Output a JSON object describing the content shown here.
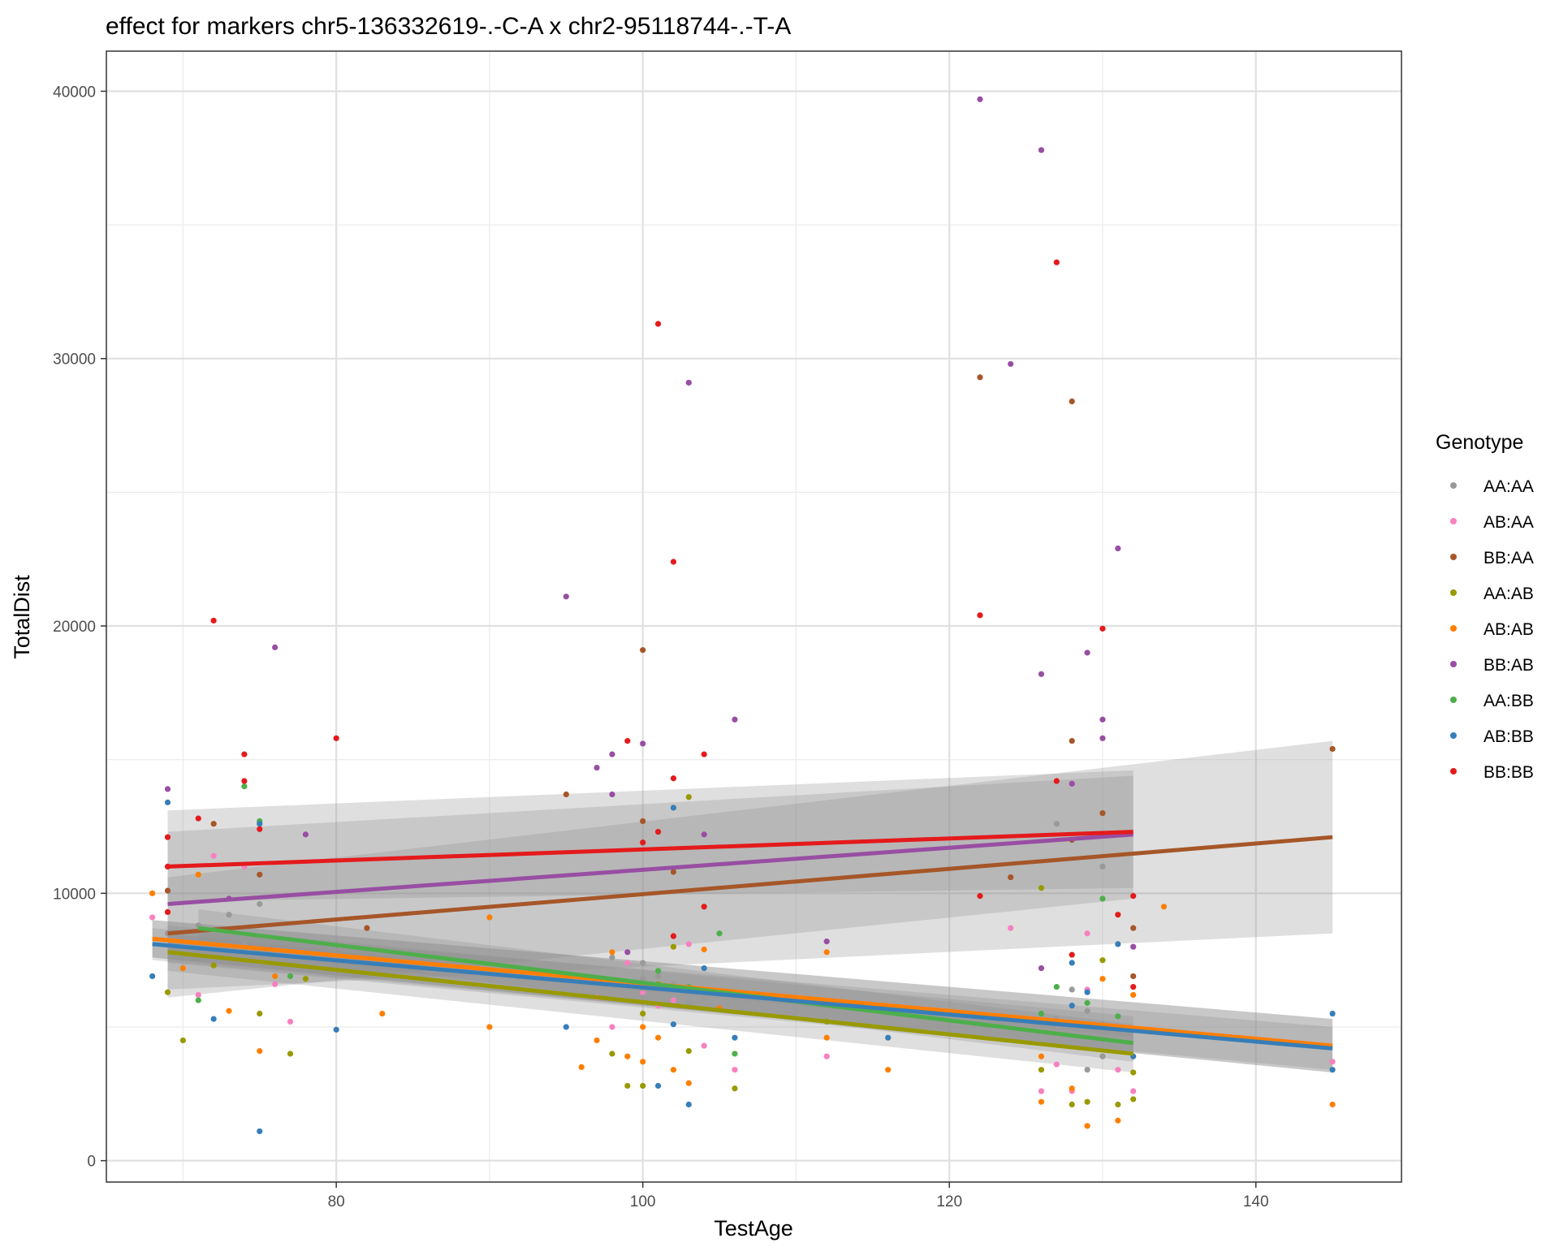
{
  "chart_data": {
    "type": "scatter",
    "title": "effect for markers chr5-136332619-.-C-A x chr2-95118744-.-T-A",
    "xlabel": "TestAge",
    "ylabel": "TotalDist",
    "xlim": [
      65,
      149.5
    ],
    "ylim": [
      -800,
      41500
    ],
    "x_ticks": [
      80,
      100,
      120,
      140
    ],
    "y_ticks": [
      0,
      10000,
      20000,
      30000,
      40000
    ],
    "x_minor": [
      70,
      90,
      110,
      130
    ],
    "y_minor": [
      5000,
      15000,
      25000,
      35000
    ],
    "grid": true,
    "legend": {
      "title": "Genotype",
      "placement": "right",
      "items": [
        "AA:AA",
        "AB:AA",
        "BB:AA",
        "AA:AB",
        "AB:AB",
        "BB:AB",
        "AA:BB",
        "AB:BB",
        "BB:BB"
      ]
    },
    "colors": {
      "AA:AA": "#999999",
      "AB:AA": "#f781bf",
      "BB:AA": "#a65628",
      "AA:AB": "#999900",
      "AB:AB": "#ff7f00",
      "BB:AB": "#984ea3",
      "AA:BB": "#4daf4a",
      "AB:BB": "#377eb8",
      "BB:BB": "#e41a1c"
    },
    "series": [
      {
        "name": "AA:AA",
        "points": [
          [
            69,
            8500
          ],
          [
            71,
            8800
          ],
          [
            73,
            9200
          ],
          [
            74,
            8100
          ],
          [
            75,
            9600
          ],
          [
            76,
            7700
          ],
          [
            98,
            7600
          ],
          [
            100,
            7400
          ],
          [
            100,
            6800
          ],
          [
            101,
            6900
          ],
          [
            102,
            6600
          ],
          [
            103,
            5900
          ],
          [
            104,
            6100
          ],
          [
            129,
            5600
          ],
          [
            130,
            5100
          ],
          [
            131,
            4900
          ],
          [
            128,
            6400
          ],
          [
            127,
            5300
          ],
          [
            129,
            3400
          ],
          [
            130,
            3900
          ],
          [
            127,
            12600
          ],
          [
            130,
            11000
          ]
        ],
        "fit": {
          "x": [
            69,
            132
          ],
          "y": [
            8100,
            4700
          ]
        },
        "ci": {
          "x": [
            69,
            132
          ],
          "upper": [
            8800,
            5400
          ],
          "lower": [
            7400,
            4000
          ]
        }
      },
      {
        "name": "AB:AA",
        "points": [
          [
            68,
            9100
          ],
          [
            71,
            6200
          ],
          [
            72,
            11400
          ],
          [
            74,
            11000
          ],
          [
            76,
            6600
          ],
          [
            77,
            5200
          ],
          [
            97,
            6100
          ],
          [
            98,
            5000
          ],
          [
            99,
            7400
          ],
          [
            100,
            6300
          ],
          [
            101,
            5800
          ],
          [
            102,
            6000
          ],
          [
            103,
            8100
          ],
          [
            104,
            4300
          ],
          [
            106,
            3400
          ],
          [
            112,
            3900
          ],
          [
            124,
            8700
          ],
          [
            126,
            2600
          ],
          [
            127,
            3600
          ],
          [
            128,
            2600
          ],
          [
            129,
            8500
          ],
          [
            129,
            6400
          ],
          [
            131,
            3400
          ],
          [
            132,
            2600
          ],
          [
            145,
            3700
          ]
        ],
        "fit": {
          "x": [
            68,
            145
          ],
          "y": [
            8300,
            4300
          ]
        },
        "ci": {
          "x": [
            68,
            145
          ],
          "upper": [
            9000,
            5300
          ],
          "lower": [
            7600,
            3300
          ]
        }
      },
      {
        "name": "BB:AA",
        "points": [
          [
            69,
            10100
          ],
          [
            72,
            12600
          ],
          [
            75,
            10700
          ],
          [
            82,
            8700
          ],
          [
            95,
            13700
          ],
          [
            100,
            19100
          ],
          [
            100,
            12700
          ],
          [
            102,
            10800
          ],
          [
            122,
            29300
          ],
          [
            124,
            10600
          ],
          [
            128,
            28400
          ],
          [
            128,
            15700
          ],
          [
            128,
            12000
          ],
          [
            130,
            13000
          ],
          [
            132,
            8700
          ],
          [
            132,
            6900
          ],
          [
            145,
            15400
          ]
        ],
        "fit": {
          "x": [
            69,
            145
          ],
          "y": [
            8500,
            12100
          ]
        },
        "ci": {
          "x": [
            69,
            145
          ],
          "upper": [
            10600,
            15700
          ],
          "lower": [
            6400,
            8500
          ]
        }
      },
      {
        "name": "AA:AB",
        "points": [
          [
            69,
            6300
          ],
          [
            70,
            4500
          ],
          [
            72,
            7300
          ],
          [
            75,
            5500
          ],
          [
            77,
            4000
          ],
          [
            78,
            6800
          ],
          [
            98,
            4000
          ],
          [
            99,
            2800
          ],
          [
            100,
            2800
          ],
          [
            100,
            5500
          ],
          [
            101,
            6600
          ],
          [
            102,
            8000
          ],
          [
            103,
            13600
          ],
          [
            103,
            4100
          ],
          [
            104,
            6300
          ],
          [
            106,
            2700
          ],
          [
            112,
            5200
          ],
          [
            126,
            10200
          ],
          [
            126,
            3400
          ],
          [
            128,
            2100
          ],
          [
            129,
            2200
          ],
          [
            130,
            7500
          ],
          [
            131,
            2100
          ],
          [
            132,
            3300
          ],
          [
            132,
            2300
          ]
        ],
        "fit": {
          "x": [
            69,
            132
          ],
          "y": [
            7800,
            4000
          ]
        },
        "ci": {
          "x": [
            69,
            132
          ],
          "upper": [
            8500,
            4700
          ],
          "lower": [
            7100,
            3300
          ]
        }
      },
      {
        "name": "AB:AB",
        "points": [
          [
            68,
            10000
          ],
          [
            70,
            7200
          ],
          [
            71,
            10700
          ],
          [
            73,
            5600
          ],
          [
            75,
            4100
          ],
          [
            76,
            6900
          ],
          [
            83,
            5500
          ],
          [
            90,
            9100
          ],
          [
            90,
            5000
          ],
          [
            96,
            3500
          ],
          [
            97,
            4500
          ],
          [
            98,
            7800
          ],
          [
            99,
            3900
          ],
          [
            100,
            3700
          ],
          [
            100,
            5000
          ],
          [
            101,
            4600
          ],
          [
            102,
            3400
          ],
          [
            103,
            2900
          ],
          [
            104,
            7900
          ],
          [
            105,
            5700
          ],
          [
            112,
            7800
          ],
          [
            112,
            4600
          ],
          [
            116,
            3400
          ],
          [
            126,
            3900
          ],
          [
            126,
            2200
          ],
          [
            128,
            2700
          ],
          [
            129,
            1300
          ],
          [
            130,
            6800
          ],
          [
            131,
            1500
          ],
          [
            132,
            6200
          ],
          [
            134,
            9500
          ],
          [
            145,
            2100
          ]
        ],
        "fit": {
          "x": [
            68,
            145
          ],
          "y": [
            8300,
            4300
          ]
        },
        "ci": {
          "x": [
            68,
            145
          ],
          "upper": [
            9000,
            5300
          ],
          "lower": [
            7600,
            3300
          ]
        }
      },
      {
        "name": "BB:AB",
        "points": [
          [
            69,
            13900
          ],
          [
            73,
            9800
          ],
          [
            76,
            19200
          ],
          [
            78,
            12200
          ],
          [
            95,
            21100
          ],
          [
            97,
            14700
          ],
          [
            98,
            15200
          ],
          [
            98,
            13700
          ],
          [
            99,
            7800
          ],
          [
            100,
            15600
          ],
          [
            103,
            29100
          ],
          [
            104,
            12200
          ],
          [
            106,
            16500
          ],
          [
            112,
            8200
          ],
          [
            122,
            39700
          ],
          [
            124,
            29800
          ],
          [
            126,
            37800
          ],
          [
            126,
            18200
          ],
          [
            126,
            7200
          ],
          [
            128,
            14100
          ],
          [
            129,
            19000
          ],
          [
            130,
            16500
          ],
          [
            130,
            15800
          ],
          [
            131,
            22900
          ],
          [
            132,
            8000
          ]
        ],
        "fit": {
          "x": [
            69,
            132
          ],
          "y": [
            9600,
            12200
          ]
        },
        "ci": {
          "x": [
            69,
            132
          ],
          "upper": [
            13100,
            14600
          ],
          "lower": [
            6100,
            9800
          ]
        }
      },
      {
        "name": "AA:BB",
        "points": [
          [
            71,
            6000
          ],
          [
            74,
            14000
          ],
          [
            75,
            12700
          ],
          [
            77,
            6900
          ],
          [
            101,
            7100
          ],
          [
            103,
            6500
          ],
          [
            105,
            8500
          ],
          [
            106,
            4000
          ],
          [
            126,
            5500
          ],
          [
            127,
            6500
          ],
          [
            129,
            5900
          ],
          [
            130,
            9800
          ],
          [
            131,
            5400
          ]
        ],
        "fit": {
          "x": [
            71,
            132
          ],
          "y": [
            8700,
            4400
          ]
        },
        "ci": {
          "x": [
            71,
            132
          ],
          "upper": [
            9400,
            5100
          ],
          "lower": [
            8000,
            3700
          ]
        }
      },
      {
        "name": "AB:BB",
        "points": [
          [
            68,
            6900
          ],
          [
            69,
            13400
          ],
          [
            72,
            5300
          ],
          [
            75,
            1100
          ],
          [
            75,
            12600
          ],
          [
            80,
            4900
          ],
          [
            95,
            5000
          ],
          [
            101,
            2800
          ],
          [
            102,
            13200
          ],
          [
            102,
            5100
          ],
          [
            103,
            2100
          ],
          [
            104,
            7200
          ],
          [
            106,
            4600
          ],
          [
            116,
            4600
          ],
          [
            128,
            7400
          ],
          [
            128,
            5800
          ],
          [
            129,
            6300
          ],
          [
            131,
            8100
          ],
          [
            132,
            3900
          ],
          [
            145,
            5500
          ],
          [
            145,
            3400
          ]
        ],
        "fit": {
          "x": [
            68,
            145
          ],
          "y": [
            8100,
            4200
          ]
        },
        "ci": {
          "x": [
            68,
            145
          ],
          "upper": [
            8700,
            5000
          ],
          "lower": [
            7500,
            3400
          ]
        }
      },
      {
        "name": "BB:BB",
        "points": [
          [
            69,
            12100
          ],
          [
            69,
            11000
          ],
          [
            69,
            9300
          ],
          [
            71,
            12800
          ],
          [
            72,
            20200
          ],
          [
            74,
            15200
          ],
          [
            74,
            14200
          ],
          [
            75,
            12400
          ],
          [
            80,
            15800
          ],
          [
            99,
            15700
          ],
          [
            100,
            11900
          ],
          [
            101,
            31300
          ],
          [
            101,
            12300
          ],
          [
            102,
            22400
          ],
          [
            102,
            14300
          ],
          [
            102,
            8400
          ],
          [
            104,
            15200
          ],
          [
            104,
            9500
          ],
          [
            122,
            20400
          ],
          [
            122,
            9900
          ],
          [
            127,
            33600
          ],
          [
            127,
            14200
          ],
          [
            128,
            7700
          ],
          [
            130,
            19900
          ],
          [
            131,
            9200
          ],
          [
            132,
            9900
          ],
          [
            132,
            6500
          ]
        ],
        "fit": {
          "x": [
            69,
            132
          ],
          "y": [
            11000,
            12300
          ]
        },
        "ci": {
          "x": [
            69,
            132
          ],
          "upper": [
            12300,
            14400
          ],
          "lower": [
            9700,
            10200
          ]
        }
      }
    ]
  }
}
